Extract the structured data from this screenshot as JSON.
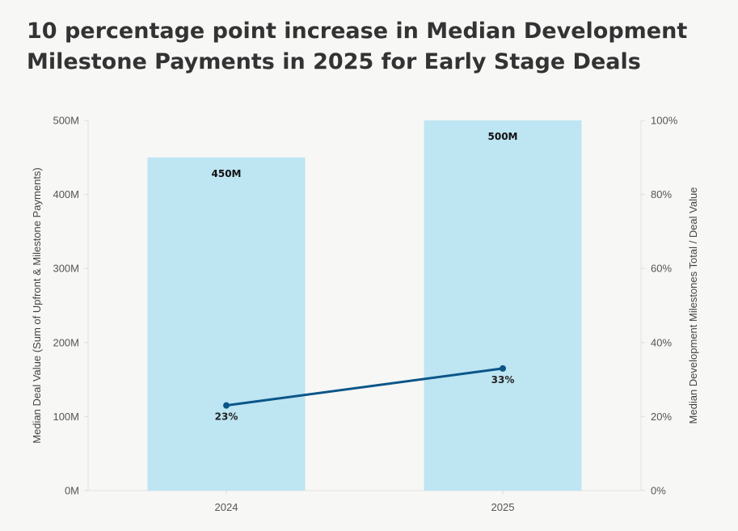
{
  "chart_data": {
    "type": "bar",
    "title_lines": [
      "10 percentage point increase in Median Development",
      "Milestone Payments in 2025 for Early Stage Deals"
    ],
    "categories": [
      "2024",
      "2025"
    ],
    "series": [
      {
        "type": "bar",
        "axis": "left",
        "values": [
          450,
          500
        ],
        "value_labels": [
          "450M",
          "500M"
        ],
        "color": "#bde5f2"
      },
      {
        "type": "line",
        "axis": "right",
        "values": [
          23,
          33
        ],
        "value_labels": [
          "23%",
          "33%"
        ],
        "color": "#0b5688"
      }
    ],
    "y_left": {
      "label": "Median Deal Value (Sum of Upfront & Milestone Payments)",
      "ylim": [
        0,
        500
      ],
      "ticks": [
        0,
        100,
        200,
        300,
        400,
        500
      ],
      "tick_labels": [
        "0M",
        "100M",
        "200M",
        "300M",
        "400M",
        "500M"
      ]
    },
    "y_right": {
      "label": "Median Development Milestones Total / Deal Value",
      "ylim": [
        0,
        100
      ],
      "ticks": [
        0,
        20,
        40,
        60,
        80,
        100
      ],
      "tick_labels": [
        "0%",
        "20%",
        "40%",
        "60%",
        "80%",
        "100%"
      ]
    },
    "grid": false,
    "legend": "none"
  }
}
